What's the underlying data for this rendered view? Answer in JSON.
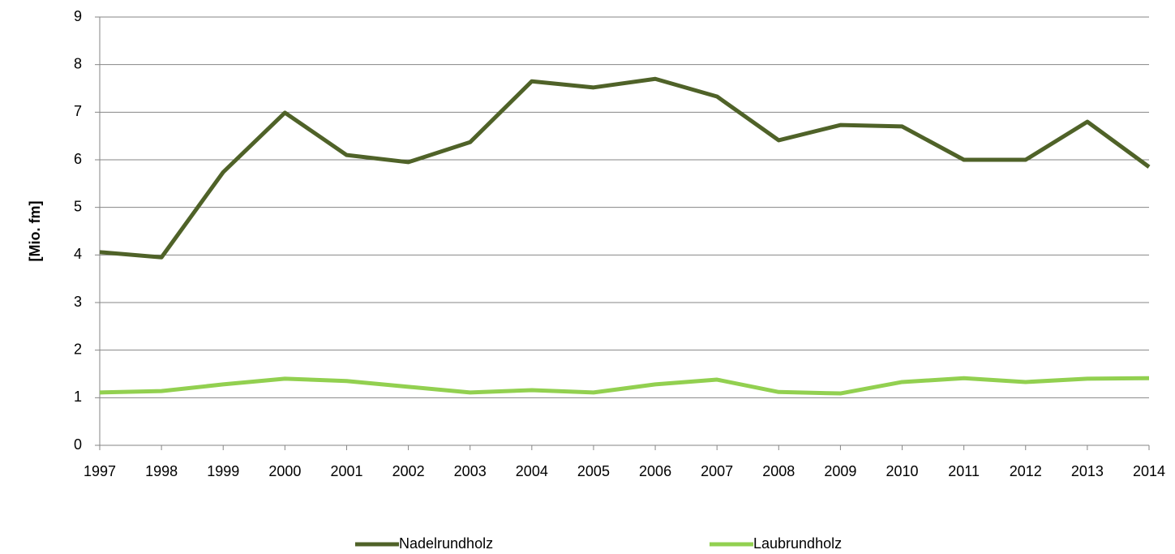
{
  "chart_data": {
    "type": "line",
    "y_label": "[Mio. fm]",
    "categories": [
      "1997",
      "1998",
      "1999",
      "2000",
      "2001",
      "2002",
      "2003",
      "2004",
      "2005",
      "2006",
      "2007",
      "2008",
      "2009",
      "2010",
      "2011",
      "2012",
      "2013",
      "2014"
    ],
    "series": [
      {
        "name": "Nadelrundholz",
        "color": "#4f6228",
        "values": [
          4.06,
          3.95,
          5.74,
          6.99,
          6.1,
          5.95,
          6.37,
          7.65,
          7.52,
          7.7,
          7.33,
          6.41,
          6.73,
          6.7,
          6.0,
          6.0,
          6.8,
          5.85
        ]
      },
      {
        "name": "Laubrundholz",
        "color": "#92d050",
        "values": [
          1.11,
          1.14,
          1.28,
          1.4,
          1.35,
          1.23,
          1.11,
          1.16,
          1.11,
          1.28,
          1.38,
          1.12,
          1.09,
          1.33,
          1.41,
          1.33,
          1.4,
          1.41
        ]
      }
    ],
    "ylim": [
      0,
      9
    ],
    "yticks": [
      0,
      1,
      2,
      3,
      4,
      5,
      6,
      7,
      8,
      9
    ],
    "grid": true,
    "legend": "bottom"
  }
}
